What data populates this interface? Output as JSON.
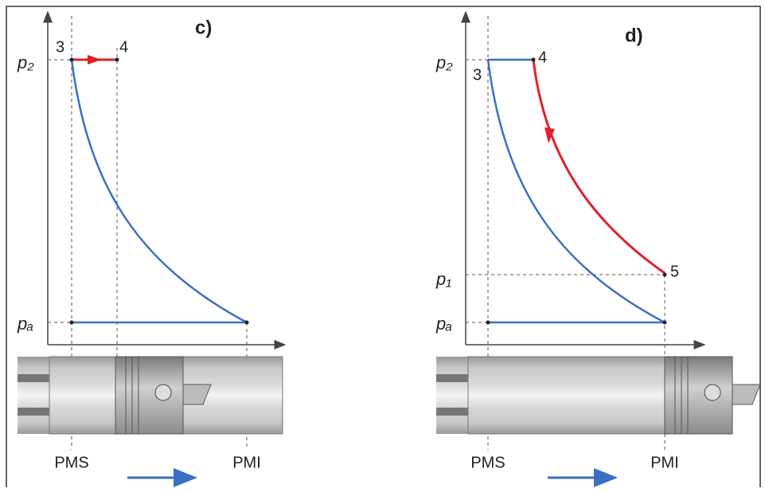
{
  "panels": [
    {
      "label": "c)",
      "pressures": [
        "p₂",
        "pₐ"
      ],
      "points": [
        "3",
        "4"
      ],
      "positions": [
        "PMS",
        "PMI"
      ]
    },
    {
      "label": "d)",
      "pressures": [
        "p₂",
        "p₁",
        "pₐ"
      ],
      "points": [
        "3",
        "4",
        "5"
      ],
      "positions": [
        "PMS",
        "PMI"
      ]
    }
  ]
}
